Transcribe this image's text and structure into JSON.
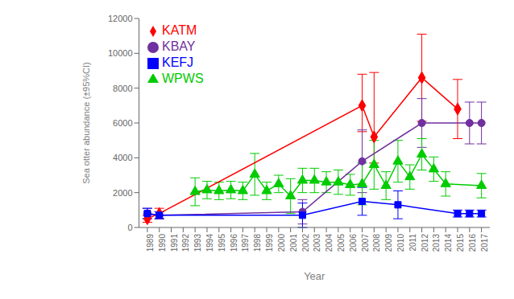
{
  "chart_data": {
    "type": "line",
    "xlabel": "Year",
    "ylabel": "Sea otter abundance (±95%CI)",
    "xlim": [
      1988.3,
      2017.7
    ],
    "xticks": [
      1989,
      1990,
      1991,
      1992,
      1993,
      1994,
      1995,
      1996,
      1997,
      1998,
      1999,
      2000,
      2001,
      2002,
      2003,
      2004,
      2005,
      2006,
      2007,
      2008,
      2009,
      2010,
      2011,
      2012,
      2013,
      2014,
      2015,
      2016,
      2017
    ],
    "ylim": [
      0,
      12000
    ],
    "yticks": [
      0,
      2000,
      4000,
      6000,
      8000,
      10000,
      12000
    ],
    "grid": false,
    "legend": "upper left",
    "series": [
      {
        "name": "KATM",
        "color": "#ff0000",
        "marker": "diamond",
        "x": [
          1989,
          1990,
          2007,
          2008,
          2012,
          2015
        ],
        "values": [
          500,
          800,
          7000,
          5200,
          8600,
          6800
        ],
        "error_low": [
          200,
          300,
          1500,
          1500,
          2500,
          1700
        ],
        "error_high": [
          200,
          300,
          1800,
          3700,
          2500,
          1700
        ]
      },
      {
        "name": "KBAY",
        "color": "#7030a0",
        "marker": "circle",
        "x": [
          1989,
          1990,
          2002,
          2007,
          2012,
          2016,
          2017
        ],
        "values": [
          800,
          700,
          900,
          3800,
          6000,
          6000,
          6000
        ],
        "error_low": [
          300,
          200,
          700,
          1800,
          1400,
          1200,
          1200
        ],
        "error_high": [
          300,
          200,
          700,
          1800,
          1400,
          1200,
          1200
        ]
      },
      {
        "name": "KEFJ",
        "color": "#0000ff",
        "marker": "square",
        "x": [
          1989,
          1990,
          2002,
          2007,
          2010,
          2015,
          2016,
          2017
        ],
        "values": [
          800,
          700,
          700,
          1500,
          1300,
          800,
          800,
          800
        ],
        "error_low": [
          300,
          200,
          700,
          800,
          800,
          200,
          200,
          200
        ],
        "error_high": [
          300,
          200,
          700,
          800,
          800,
          200,
          200,
          200
        ]
      },
      {
        "name": "WPWS",
        "color": "#00cc00",
        "marker": "triangle",
        "x": [
          1993,
          1994,
          1995,
          1996,
          1997,
          1998,
          1999,
          2000,
          2001,
          2002,
          2003,
          2004,
          2005,
          2006,
          2007,
          2008,
          2009,
          2010,
          2011,
          2012,
          2013,
          2014,
          2017
        ],
        "values": [
          2050,
          2150,
          2100,
          2150,
          2100,
          3050,
          2100,
          2500,
          1800,
          2700,
          2700,
          2600,
          2600,
          2450,
          2500,
          3600,
          2400,
          3800,
          2900,
          4200,
          3350,
          2500,
          2400
        ],
        "error_low": [
          800,
          500,
          500,
          500,
          500,
          1200,
          500,
          500,
          1000,
          700,
          700,
          600,
          700,
          600,
          1200,
          1400,
          800,
          1200,
          700,
          900,
          700,
          700,
          700
        ],
        "error_high": [
          800,
          500,
          500,
          500,
          500,
          1200,
          500,
          500,
          1000,
          700,
          700,
          600,
          700,
          600,
          1200,
          1400,
          800,
          1200,
          700,
          900,
          700,
          700,
          700
        ]
      }
    ]
  }
}
